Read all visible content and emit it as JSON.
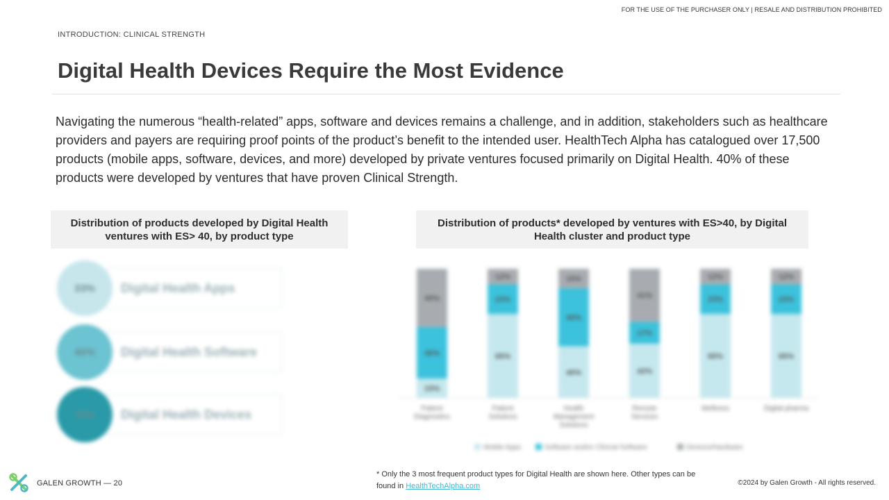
{
  "header": {
    "notice": "FOR THE USE OF THE PURCHASER ONLY | RESALE AND DISTRIBUTION PROHIBITED",
    "section_label": "INTRODUCTION: CLINICAL STRENGTH",
    "title": "Digital Health Devices Require the Most Evidence"
  },
  "intro": {
    "text": "Navigating the numerous “health-related” apps, software and devices remains a challenge, and in addition, stakeholders such as healthcare providers and payers are requiring proof points of the product’s benefit to the intended user. HealthTech Alpha has catalogued over 17,500 products (mobile apps, software, devices, and more) developed by private ventures focused primarily on Digital Health. 40% of these products were developed by ventures that have proven Clinical Strength."
  },
  "left_panel": {
    "title": "Distribution of products developed by Digital Health ventures with ES> 40, by product type",
    "items": [
      {
        "value": "33%",
        "label": "Digital Health Apps",
        "color": "#c6e6ec"
      },
      {
        "value": "40%",
        "label": "Digital Health Software",
        "color": "#6cc3d1"
      },
      {
        "value": "70%",
        "label": "Digital Health Devices",
        "color": "#2a9aa8"
      }
    ]
  },
  "right_panel": {
    "title": "Distribution of products* developed by ventures with ES>40, by Digital Health cluster and product type"
  },
  "chart_data": {
    "type": "bar",
    "stacked": true,
    "categories": [
      "Patient Diagnostics",
      "Patient Solutions",
      "Health Management Solutions",
      "Remote Services",
      "Wellness",
      "Digital pharma"
    ],
    "series": [
      {
        "name": "Mobile Apps",
        "color": "#c5e8ee",
        "values": [
          15,
          65,
          40,
          42,
          65,
          65
        ]
      },
      {
        "name": "Software and/or Clinical Software",
        "color": "#3cc2dc",
        "values": [
          40,
          23,
          45,
          17,
          23,
          23
        ]
      },
      {
        "name": "Devices/Hardware",
        "color": "#a8acb0",
        "values": [
          45,
          12,
          15,
          41,
          12,
          12
        ]
      }
    ],
    "value_labels": [
      [
        "15%",
        "40%",
        "45%"
      ],
      [
        "65%",
        "23%",
        "12%"
      ],
      [
        "40%",
        "45%",
        "15%"
      ],
      [
        "42%",
        "17%",
        "41%"
      ],
      [
        "65%",
        "23%",
        "12%"
      ],
      [
        "65%",
        "23%",
        "12%"
      ]
    ],
    "ylim": [
      0,
      100
    ],
    "legend_position": "bottom"
  },
  "footnote": {
    "text": "* Only the 3 most frequent product types for Digital Health are shown here. Other types can be found in ",
    "link": "HealthTechAlpha.com"
  },
  "footer": {
    "left": "GALEN GROWTH  —  20",
    "right": "©2024 by Galen Growth  - All rights reserved."
  }
}
